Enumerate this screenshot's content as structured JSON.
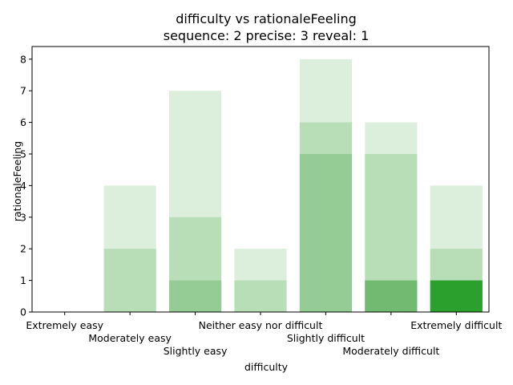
{
  "chart_data": {
    "type": "bar",
    "title": "difficulty vs rationaleFeeling",
    "subtitle": "sequence: 2  precise: 3  reveal: 1",
    "xlabel": "difficulty",
    "ylabel": "rationaleFeeling",
    "ylim": [
      0,
      8.4
    ],
    "yticks": [
      0,
      1,
      2,
      3,
      4,
      5,
      6,
      7,
      8
    ],
    "grid": false,
    "categories": [
      "Extremely easy",
      "Moderately easy",
      "Slightly easy",
      "Neither easy nor difficult",
      "Slightly difficult",
      "Moderately difficult",
      "Extremely difficult"
    ],
    "stacks": [
      [],
      [
        {
          "value": 4,
          "shade": "#dcefdc"
        },
        {
          "value": 2,
          "shade": "#b8deb8"
        }
      ],
      [
        {
          "value": 7,
          "shade": "#dcefdc"
        },
        {
          "value": 3,
          "shade": "#b8deb8"
        },
        {
          "value": 1,
          "shade": "#95cc95"
        }
      ],
      [
        {
          "value": 2,
          "shade": "#dcefdc"
        },
        {
          "value": 1,
          "shade": "#b8deb8"
        }
      ],
      [
        {
          "value": 8,
          "shade": "#dcefdc"
        },
        {
          "value": 6,
          "shade": "#b8deb8"
        },
        {
          "value": 5,
          "shade": "#95cc95"
        }
      ],
      [
        {
          "value": 6,
          "shade": "#dcefdc"
        },
        {
          "value": 5,
          "shade": "#b8deb8"
        },
        {
          "value": 1,
          "shade": "#72ba72"
        }
      ],
      [
        {
          "value": 4,
          "shade": "#dcefdc"
        },
        {
          "value": 2,
          "shade": "#b8deb8"
        },
        {
          "value": 1,
          "shade": "#2ca02c"
        }
      ]
    ]
  }
}
